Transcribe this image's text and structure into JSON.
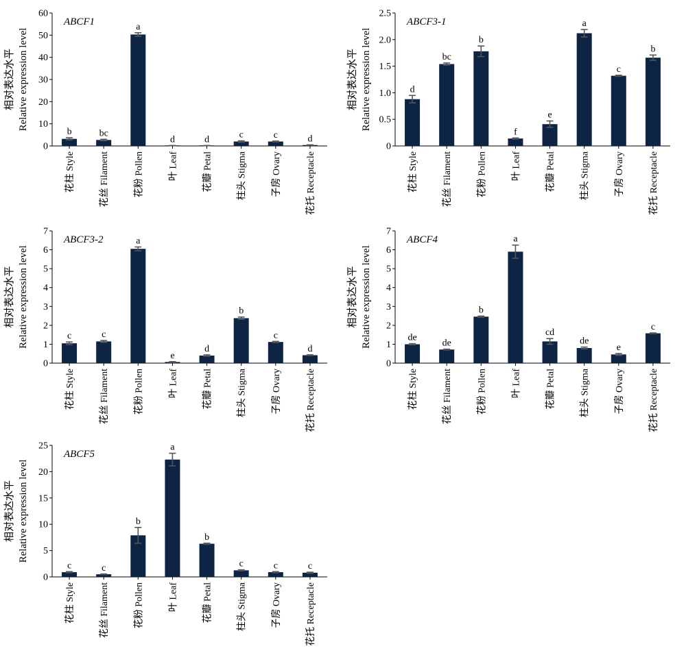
{
  "ylabel_zh": "相对表达水平",
  "ylabel_en": "Relative expression level",
  "categories": [
    "花柱 Style",
    "花丝 Filament",
    "花粉 Pollen",
    "叶 Leaf",
    "花瓣 Petal",
    "柱头 Stigma",
    "子房 Ovary",
    "花托 Receptacle"
  ],
  "chart_data": [
    {
      "type": "bar",
      "title": "ABCF1",
      "ylim": [
        0,
        60
      ],
      "yticks": [
        "0",
        "10",
        "20",
        "30",
        "40",
        "50",
        "60"
      ],
      "values": [
        3.2,
        2.7,
        50.3,
        0.15,
        0.15,
        2.0,
        2.0,
        0.4
      ],
      "errors": [
        0.5,
        0.3,
        0.8,
        0.05,
        0.05,
        0.3,
        0.2,
        0.1
      ],
      "letters": [
        "b",
        "bc",
        "a",
        "d",
        "d",
        "c",
        "c",
        "d"
      ]
    },
    {
      "type": "bar",
      "title": "ABCF3-1",
      "ylim": [
        0,
        2.5
      ],
      "yticks": [
        "0",
        "0.5",
        "1.0",
        "1.5",
        "2.0",
        "2.5"
      ],
      "values": [
        0.88,
        1.54,
        1.78,
        0.14,
        0.41,
        2.12,
        1.32,
        1.66
      ],
      "errors": [
        0.07,
        0.02,
        0.1,
        0.01,
        0.06,
        0.07,
        0.01,
        0.05
      ],
      "letters": [
        "d",
        "bc",
        "b",
        "f",
        "e",
        "a",
        "c",
        "b"
      ]
    },
    {
      "type": "bar",
      "title": "ABCF3-2",
      "ylim": [
        0,
        7
      ],
      "yticks": [
        "0",
        "1",
        "2",
        "3",
        "4",
        "5",
        "6",
        "7"
      ],
      "values": [
        1.05,
        1.15,
        6.05,
        0.06,
        0.4,
        2.38,
        1.12,
        0.42
      ],
      "errors": [
        0.07,
        0.05,
        0.1,
        0.02,
        0.04,
        0.06,
        0.03,
        0.02
      ],
      "letters": [
        "c",
        "c",
        "a",
        "e",
        "d",
        "b",
        "c",
        "d"
      ]
    },
    {
      "type": "bar",
      "title": "ABCF4",
      "ylim": [
        0,
        7
      ],
      "yticks": [
        "0",
        "1",
        "2",
        "3",
        "4",
        "5",
        "6",
        "7"
      ],
      "values": [
        1.0,
        0.72,
        2.46,
        5.9,
        1.15,
        0.8,
        0.46,
        1.58
      ],
      "errors": [
        0.03,
        0.02,
        0.03,
        0.35,
        0.15,
        0.05,
        0.05,
        0.02
      ],
      "letters": [
        "de",
        "de",
        "b",
        "a",
        "cd",
        "de",
        "e",
        "c"
      ]
    },
    {
      "type": "bar",
      "title": "ABCF5",
      "ylim": [
        0,
        25
      ],
      "yticks": [
        "0",
        "5",
        "10",
        "15",
        "20",
        "25"
      ],
      "values": [
        0.9,
        0.5,
        7.9,
        22.3,
        6.3,
        1.25,
        0.9,
        0.8
      ],
      "errors": [
        0.1,
        0.05,
        1.5,
        1.2,
        0.1,
        0.1,
        0.1,
        0.1
      ],
      "letters": [
        "c",
        "c",
        "b",
        "a",
        "b",
        "c",
        "c",
        "c"
      ]
    }
  ]
}
